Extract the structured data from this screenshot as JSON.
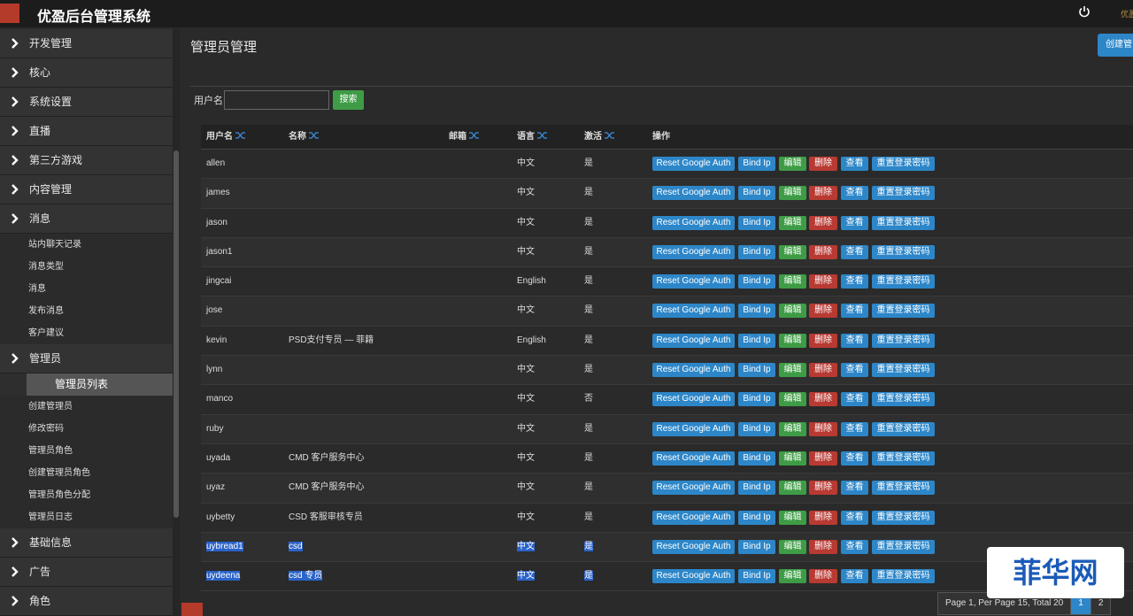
{
  "header": {
    "title": "优盈后台管理系统",
    "corner_logo": "优盈"
  },
  "sidebar": [
    {
      "label": "开发管理"
    },
    {
      "label": "核心"
    },
    {
      "label": "系统设置"
    },
    {
      "label": "直播"
    },
    {
      "label": "第三方游戏"
    },
    {
      "label": "内容管理"
    },
    {
      "label": "消息",
      "children": [
        "站内聊天记录",
        "消息类型",
        "消息",
        "发布消息",
        "客户建议"
      ]
    },
    {
      "label": "管理员",
      "children": [
        "管理员列表",
        "创建管理员",
        "修改密码",
        "管理员角色",
        "创建管理员角色",
        "管理员角色分配",
        "管理员日志"
      ],
      "active_child": 0
    },
    {
      "label": "基础信息"
    },
    {
      "label": "广告"
    },
    {
      "label": "角色"
    }
  ],
  "page": {
    "title": "管理员管理",
    "create_button": "创建管"
  },
  "search": {
    "label": "用户名",
    "button": "搜索"
  },
  "table": {
    "columns": [
      "用户名",
      "名称",
      "邮箱",
      "语言",
      "激活",
      "操作"
    ],
    "actions": [
      "Reset Google Auth",
      "Bind Ip",
      "编辑",
      "删除",
      "查看",
      "重置登录密码"
    ],
    "rows": [
      [
        "allen",
        "",
        "",
        "中文",
        "是"
      ],
      [
        "james",
        "",
        "",
        "中文",
        "是"
      ],
      [
        "jason",
        "",
        "",
        "中文",
        "是"
      ],
      [
        "jason1",
        "",
        "",
        "中文",
        "是"
      ],
      [
        "jingcai",
        "",
        "",
        "English",
        "是"
      ],
      [
        "jose",
        "",
        "",
        "中文",
        "是"
      ],
      [
        "kevin",
        "PSD支付专员 — 菲籍",
        "",
        "English",
        "是"
      ],
      [
        "lynn",
        "",
        "",
        "中文",
        "是"
      ],
      [
        "manco",
        "",
        "",
        "中文",
        "否"
      ],
      [
        "ruby",
        "",
        "",
        "中文",
        "是"
      ],
      [
        "uyada",
        "CMD 客户服务中心",
        "",
        "中文",
        "是"
      ],
      [
        "uyaz",
        "CMD 客户服务中心",
        "",
        "中文",
        "是"
      ],
      [
        "uybetty",
        "CSD 客服审核专员",
        "",
        "中文",
        "是"
      ],
      [
        "uybread1",
        "csd",
        "",
        "中文",
        "是"
      ],
      [
        "uydeena",
        "csd 专员",
        "",
        "中文",
        "是"
      ]
    ],
    "selected_rows": [
      13,
      14
    ]
  },
  "pagination": {
    "summary": "Page 1, Per Page 15, Total 20",
    "pages": [
      "1",
      "2"
    ],
    "current": 0
  },
  "watermark": "菲华网"
}
